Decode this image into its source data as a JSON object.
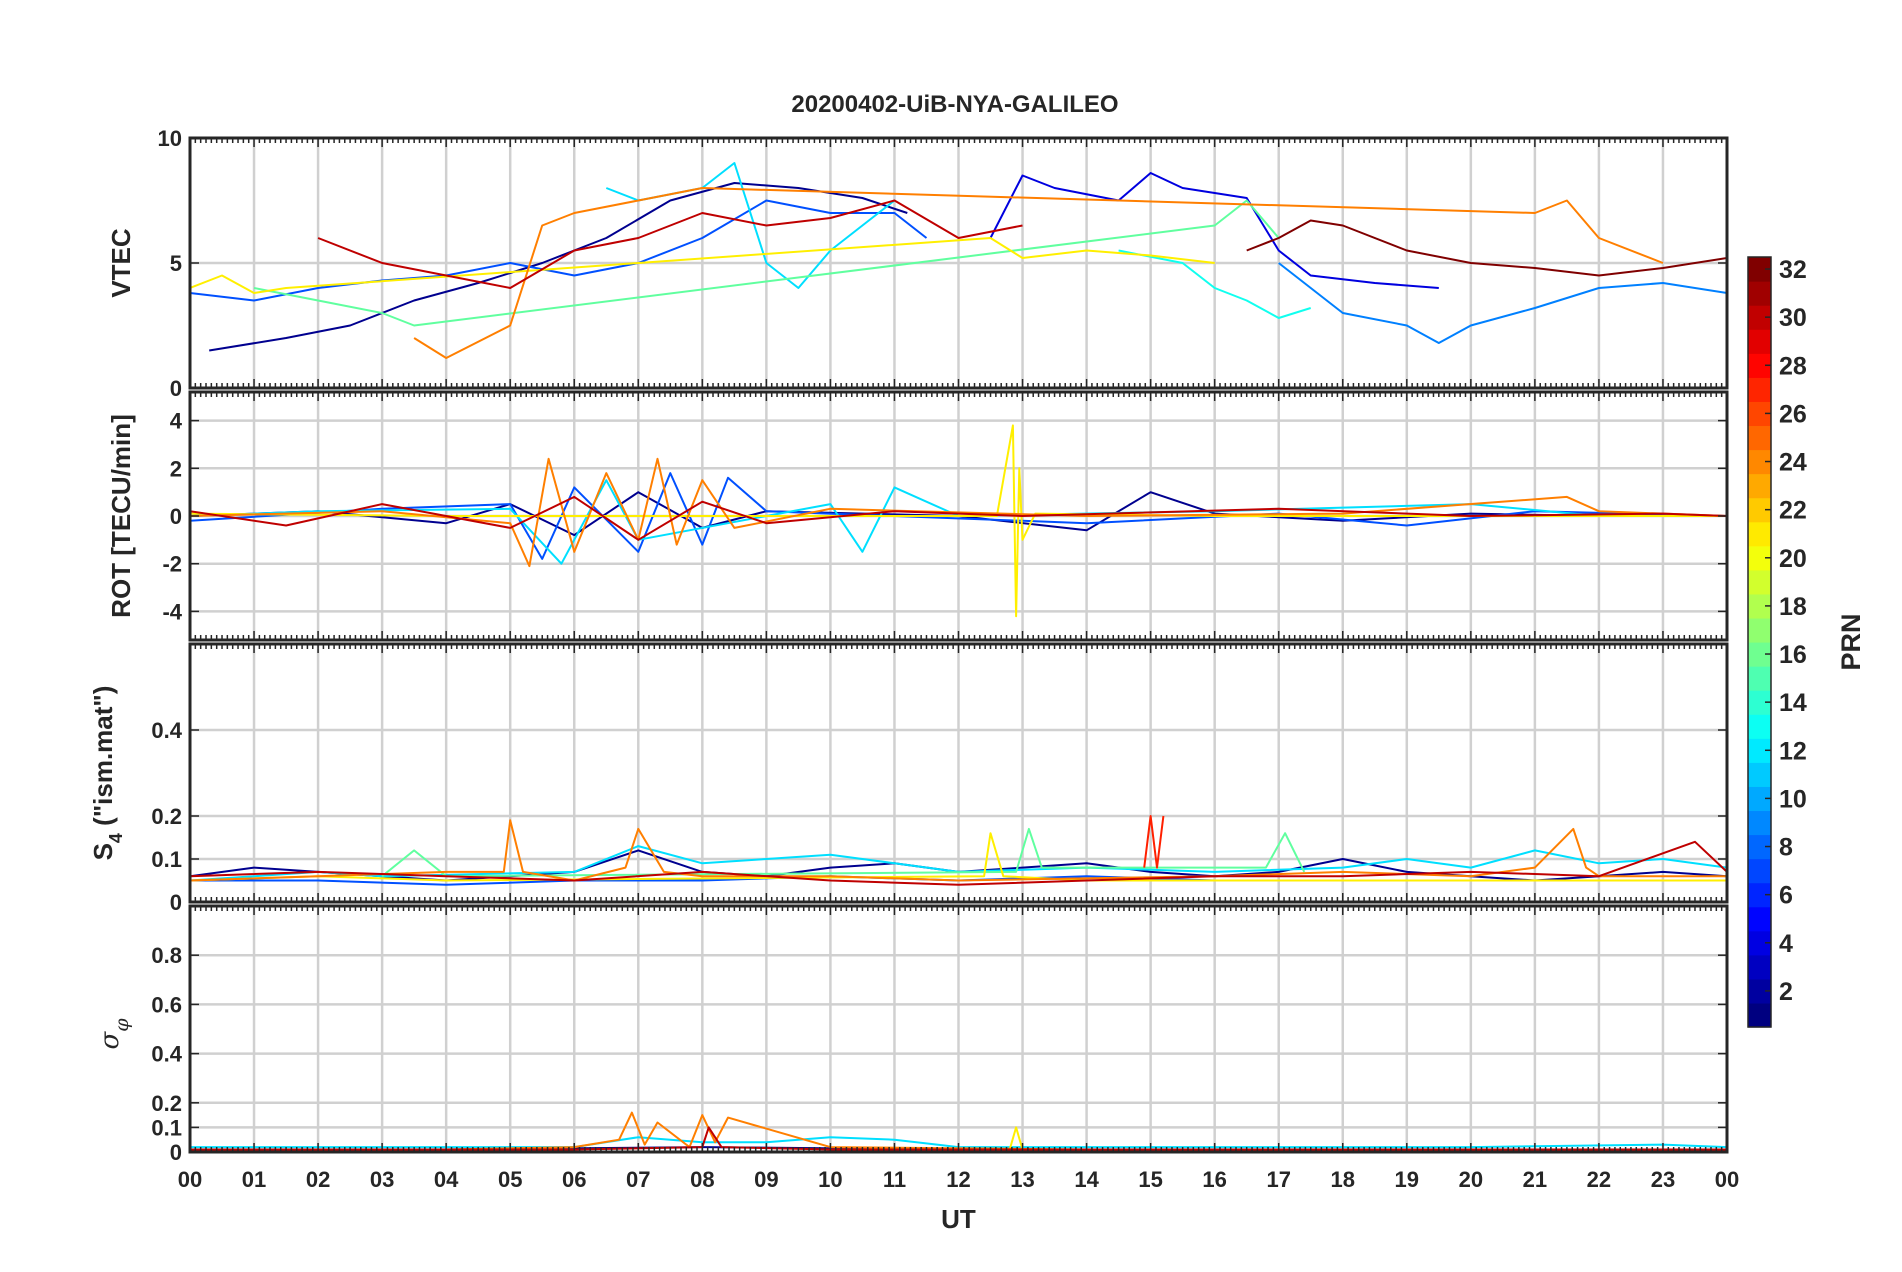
{
  "title": "20200402-UiB-NYA-GALILEO",
  "colorbar": {
    "label": "PRN",
    "min": 1,
    "max": 32,
    "ticks": [
      2,
      4,
      6,
      8,
      10,
      12,
      14,
      16,
      18,
      20,
      22,
      24,
      26,
      28,
      30,
      32
    ],
    "tick_labels": [
      "2",
      "4",
      "6",
      "8",
      "10",
      "12",
      "14",
      "16",
      "18",
      "20",
      "22",
      "24",
      "26",
      "28",
      "30",
      "32"
    ],
    "colormap": "jet"
  },
  "chart_data": [
    {
      "type": "line",
      "panel": "VTEC",
      "ylabel": "VTEC",
      "xlim": [
        0,
        24
      ],
      "ylim": [
        0,
        10
      ],
      "yticks": [
        0,
        5,
        10
      ],
      "ytick_labels": [
        "0",
        "5",
        "10"
      ],
      "grid": true,
      "series": [
        {
          "prn": 1,
          "color": "#00008f",
          "x": [
            0.3,
            1.5,
            2.5,
            3.5,
            4.5,
            5.5,
            6.5,
            7.5,
            8.5,
            9.5,
            10.5,
            11.2
          ],
          "values": [
            1.5,
            2.0,
            2.5,
            3.5,
            4.2,
            5.0,
            6.0,
            7.5,
            8.2,
            8.0,
            7.6,
            7.0
          ]
        },
        {
          "prn": 3,
          "color": "#0000df",
          "x": [
            12.5,
            13.0,
            13.5,
            14.5,
            15.0,
            15.5,
            16.5,
            17.0,
            17.5,
            18.5,
            19.5
          ],
          "values": [
            6.0,
            8.5,
            8.0,
            7.5,
            8.6,
            8.0,
            7.6,
            5.5,
            4.5,
            4.2,
            4.0
          ]
        },
        {
          "prn": 6,
          "color": "#0050ff",
          "x": [
            0.0,
            1.0,
            2.0,
            3.0,
            4.0,
            5.0,
            6.0,
            7.0,
            8.0,
            9.0,
            10.0,
            11.0,
            11.5
          ],
          "values": [
            3.8,
            3.5,
            4.0,
            4.3,
            4.5,
            5.0,
            4.5,
            5.0,
            6.0,
            7.5,
            7.0,
            7.0,
            6.0
          ]
        },
        {
          "prn": 8,
          "color": "#0080ff",
          "x": [
            17.0,
            18.0,
            19.0,
            19.5,
            20.0,
            21.0,
            22.0,
            23.0,
            24.0
          ],
          "values": [
            5.0,
            3.0,
            2.5,
            1.8,
            2.5,
            3.2,
            4.0,
            4.2,
            3.8
          ]
        },
        {
          "prn": 12,
          "color": "#00dfff",
          "x": [
            6.5,
            7.0,
            8.0,
            8.5,
            9.0,
            9.5,
            10.0,
            10.5,
            11.0
          ],
          "values": [
            8.0,
            7.5,
            8.0,
            9.0,
            5.0,
            4.0,
            5.5,
            6.5,
            7.5
          ]
        },
        {
          "prn": 13,
          "color": "#10ffef",
          "x": [
            14.5,
            15.5,
            16.0,
            16.5,
            17.0,
            17.5
          ],
          "values": [
            5.5,
            5.0,
            4.0,
            3.5,
            2.8,
            3.2
          ]
        },
        {
          "prn": 16,
          "color": "#60ff9f",
          "x": [
            1.0,
            2.0,
            3.0,
            3.5,
            16.0,
            16.5,
            17.0
          ],
          "values": [
            4.0,
            3.5,
            3.0,
            2.5,
            6.5,
            7.5,
            6.0
          ]
        },
        {
          "prn": 20,
          "color": "#ffef00",
          "x": [
            0.0,
            0.5,
            1.0,
            1.5,
            12.5,
            13.0,
            14.0,
            15.0,
            16.0
          ],
          "values": [
            4.0,
            4.5,
            3.8,
            4.0,
            6.0,
            5.2,
            5.5,
            5.3,
            5.0
          ]
        },
        {
          "prn": 24,
          "color": "#ff7f00",
          "x": [
            3.5,
            4.0,
            5.0,
            5.5,
            6.0,
            7.0,
            8.0,
            21.0,
            21.5,
            22.0,
            23.0
          ],
          "values": [
            2.0,
            1.2,
            2.5,
            6.5,
            7.0,
            7.5,
            8.0,
            7.0,
            7.5,
            6.0,
            5.0
          ]
        },
        {
          "prn": 30,
          "color": "#bf0000",
          "x": [
            2.0,
            3.0,
            4.0,
            5.0,
            6.0,
            7.0,
            8.0,
            9.0,
            10.0,
            11.0,
            12.0,
            13.0
          ],
          "values": [
            6.0,
            5.0,
            4.5,
            4.0,
            5.5,
            6.0,
            7.0,
            6.5,
            6.8,
            7.5,
            6.0,
            6.5
          ]
        },
        {
          "prn": 32,
          "color": "#800000",
          "x": [
            16.5,
            17.0,
            17.5,
            18.0,
            19.0,
            20.0,
            21.0,
            22.0,
            23.0,
            24.0
          ],
          "values": [
            5.5,
            6.0,
            6.7,
            6.5,
            5.5,
            5.0,
            4.8,
            4.5,
            4.8,
            5.2
          ]
        }
      ]
    },
    {
      "type": "line",
      "panel": "ROT",
      "ylabel": "ROT [TECU/min]",
      "xlim": [
        0,
        24
      ],
      "ylim": [
        -5.2,
        5.2
      ],
      "yticks": [
        -4,
        -2,
        0,
        2,
        4
      ],
      "ytick_labels": [
        "-4",
        "-2",
        "0",
        "2",
        "4"
      ],
      "grid": true,
      "series": [
        {
          "prn": 1,
          "color": "#00008f",
          "x": [
            0,
            2,
            4,
            5,
            6,
            7,
            8,
            9,
            12,
            14,
            15,
            16,
            18,
            20,
            22,
            24
          ],
          "values": [
            0,
            0.2,
            -0.3,
            0.5,
            -0.8,
            1.0,
            -0.5,
            0.2,
            0,
            -0.6,
            1.0,
            0.1,
            -0.2,
            0.1,
            0,
            0
          ]
        },
        {
          "prn": 6,
          "color": "#0050ff",
          "x": [
            0,
            3,
            5,
            5.5,
            6,
            7,
            7.5,
            8,
            8.4,
            9,
            11,
            14,
            17,
            19,
            21,
            24
          ],
          "values": [
            -0.2,
            0.3,
            0.5,
            -1.8,
            1.2,
            -1.5,
            1.8,
            -1.2,
            1.6,
            0.2,
            0,
            -0.3,
            0.1,
            -0.4,
            0.2,
            0
          ]
        },
        {
          "prn": 12,
          "color": "#00dfff",
          "x": [
            0,
            2,
            5,
            5.8,
            6.5,
            7,
            10,
            10.5,
            11,
            12,
            16,
            20,
            22,
            24
          ],
          "values": [
            0,
            0.2,
            0.3,
            -2.0,
            1.5,
            -1.0,
            0.5,
            -1.5,
            1.2,
            0,
            0.2,
            0.5,
            0,
            0
          ]
        },
        {
          "prn": 20,
          "color": "#ffef00",
          "x": [
            0,
            4,
            12.6,
            12.85,
            12.9,
            12.95,
            13.0,
            13.2,
            16,
            24
          ],
          "values": [
            0.1,
            0,
            0,
            3.8,
            -4.2,
            2.0,
            -1.0,
            0.1,
            0,
            0
          ]
        },
        {
          "prn": 24,
          "color": "#ff7f00",
          "x": [
            0,
            3,
            5,
            5.3,
            5.6,
            6,
            6.5,
            7,
            7.3,
            7.6,
            8,
            8.5,
            10,
            14,
            18,
            21.5,
            22,
            24
          ],
          "values": [
            0,
            0.2,
            -0.3,
            -2.1,
            2.4,
            -1.5,
            1.8,
            -1.0,
            2.4,
            -1.2,
            1.5,
            -0.5,
            0.3,
            0,
            0.1,
            0.8,
            0.2,
            0
          ]
        },
        {
          "prn": 30,
          "color": "#bf0000",
          "x": [
            0,
            1.5,
            3,
            5,
            6,
            7,
            8,
            9,
            11,
            13,
            17,
            20,
            23,
            24
          ],
          "values": [
            0.2,
            -0.4,
            0.5,
            -0.5,
            0.8,
            -1.0,
            0.6,
            -0.3,
            0.2,
            0,
            0.3,
            0,
            0.1,
            0
          ]
        }
      ]
    },
    {
      "type": "line",
      "panel": "S4",
      "ylabel": "S4 (\"ism.mat\")",
      "xlim": [
        0,
        24
      ],
      "ylim": [
        0,
        0.6
      ],
      "yticks": [
        0,
        0.1,
        0.2,
        0.4
      ],
      "ytick_labels": [
        "0",
        "0.1",
        "0.2",
        "0.4"
      ],
      "grid": true,
      "series": [
        {
          "prn": 1,
          "color": "#00008f",
          "x": [
            0,
            1,
            2,
            3,
            4,
            5,
            6,
            7,
            8,
            9,
            10,
            11,
            12,
            13,
            14,
            15,
            16,
            17,
            18,
            19,
            20,
            21,
            22,
            23,
            24
          ],
          "values": [
            0.06,
            0.08,
            0.07,
            0.06,
            0.05,
            0.06,
            0.07,
            0.12,
            0.07,
            0.06,
            0.08,
            0.09,
            0.07,
            0.08,
            0.09,
            0.07,
            0.06,
            0.07,
            0.1,
            0.07,
            0.06,
            0.05,
            0.06,
            0.07,
            0.06
          ]
        },
        {
          "prn": 6,
          "color": "#0050ff",
          "x": [
            0,
            2,
            4,
            6,
            8,
            10,
            12,
            14,
            16,
            18,
            20,
            22,
            24
          ],
          "values": [
            0.05,
            0.05,
            0.04,
            0.05,
            0.05,
            0.06,
            0.05,
            0.06,
            0.05,
            0.05,
            0.05,
            0.05,
            0.05
          ]
        },
        {
          "prn": 12,
          "color": "#00dfff",
          "x": [
            0,
            1,
            2,
            3,
            6,
            7,
            8,
            9,
            10,
            11,
            12,
            14,
            16,
            18,
            19,
            20,
            21,
            22,
            23,
            24
          ],
          "values": [
            0.05,
            0.06,
            0.07,
            0.06,
            0.07,
            0.13,
            0.09,
            0.1,
            0.11,
            0.09,
            0.07,
            0.08,
            0.07,
            0.08,
            0.1,
            0.08,
            0.12,
            0.09,
            0.1,
            0.08
          ]
        },
        {
          "prn": 16,
          "color": "#60ff9f",
          "x": [
            3,
            3.5,
            4,
            12.9,
            13.1,
            13.3,
            16.8,
            17.1,
            17.4
          ],
          "values": [
            0.06,
            0.12,
            0.06,
            0.07,
            0.17,
            0.08,
            0.08,
            0.16,
            0.07
          ]
        },
        {
          "prn": 20,
          "color": "#ffef00",
          "x": [
            0,
            2,
            4,
            12.4,
            12.5,
            12.7,
            14,
            18,
            22,
            24
          ],
          "values": [
            0.05,
            0.06,
            0.05,
            0.06,
            0.16,
            0.06,
            0.05,
            0.05,
            0.05,
            0.05
          ]
        },
        {
          "prn": 24,
          "color": "#ff7f00",
          "x": [
            0,
            2,
            4,
            4.9,
            5.0,
            5.2,
            6,
            6.8,
            7.0,
            7.4,
            8,
            10,
            12,
            16,
            18,
            20,
            21,
            21.6,
            21.8,
            22,
            24
          ],
          "values": [
            0.05,
            0.06,
            0.07,
            0.07,
            0.19,
            0.07,
            0.05,
            0.08,
            0.17,
            0.07,
            0.06,
            0.06,
            0.05,
            0.06,
            0.07,
            0.06,
            0.08,
            0.17,
            0.08,
            0.06,
            0.06
          ]
        },
        {
          "prn": 28,
          "color": "#ff2000",
          "x": [
            14.9,
            15.0,
            15.1,
            15.2
          ],
          "values": [
            0.08,
            0.2,
            0.08,
            0.2
          ]
        },
        {
          "prn": 30,
          "color": "#bf0000",
          "x": [
            0,
            2,
            4,
            6,
            8,
            10,
            12,
            14,
            16,
            18,
            20,
            22,
            23.5,
            24
          ],
          "values": [
            0.06,
            0.07,
            0.06,
            0.05,
            0.07,
            0.05,
            0.04,
            0.05,
            0.06,
            0.06,
            0.07,
            0.06,
            0.14,
            0.07
          ]
        }
      ]
    },
    {
      "type": "line",
      "panel": "sigma_phi",
      "ylabel": "σφ",
      "xlim": [
        0,
        24
      ],
      "ylim": [
        0,
        1
      ],
      "yticks": [
        0,
        0.1,
        0.2,
        0.4,
        0.6,
        0.8
      ],
      "ytick_labels": [
        "0",
        "0.1",
        "0.2",
        "0.4",
        "0.6",
        "0.8"
      ],
      "grid": true,
      "xticks": [
        0,
        1,
        2,
        3,
        4,
        5,
        6,
        7,
        8,
        9,
        10,
        11,
        12,
        13,
        14,
        15,
        16,
        17,
        18,
        19,
        20,
        21,
        22,
        23,
        24
      ],
      "xtick_labels": [
        "00",
        "01",
        "02",
        "03",
        "04",
        "05",
        "06",
        "07",
        "08",
        "09",
        "10",
        "11",
        "12",
        "13",
        "14",
        "15",
        "16",
        "17",
        "18",
        "19",
        "20",
        "21",
        "22",
        "23",
        "00"
      ],
      "xlabel": "UT",
      "series": [
        {
          "prn": 1,
          "color": "#00008f",
          "x": [
            0,
            4,
            8,
            12,
            16,
            20,
            24
          ],
          "values": [
            0.01,
            0.01,
            0.02,
            0.01,
            0.01,
            0.01,
            0.01
          ]
        },
        {
          "prn": 12,
          "color": "#00dfff",
          "x": [
            0,
            2,
            6,
            7,
            8,
            9,
            10,
            11,
            12,
            16,
            20,
            23,
            24
          ],
          "values": [
            0.02,
            0.02,
            0.02,
            0.06,
            0.04,
            0.04,
            0.06,
            0.05,
            0.02,
            0.02,
            0.02,
            0.03,
            0.02
          ]
        },
        {
          "prn": 20,
          "color": "#ffef00",
          "x": [
            12.8,
            12.9,
            13.0
          ],
          "values": [
            0.01,
            0.1,
            0.01
          ]
        },
        {
          "prn": 24,
          "color": "#ff7f00",
          "x": [
            0,
            4,
            6,
            6.7,
            6.9,
            7.1,
            7.3,
            7.8,
            8.0,
            8.2,
            8.4,
            10,
            14,
            20,
            24
          ],
          "values": [
            0.01,
            0.01,
            0.02,
            0.05,
            0.16,
            0.03,
            0.12,
            0.02,
            0.15,
            0.04,
            0.14,
            0.02,
            0.01,
            0.01,
            0.01
          ]
        },
        {
          "prn": 30,
          "color": "#bf0000",
          "x": [
            0,
            6,
            8,
            8.1,
            8.3,
            10,
            14,
            24
          ],
          "values": [
            0.01,
            0.01,
            0.02,
            0.1,
            0.02,
            0.01,
            0.01,
            0.01
          ]
        }
      ]
    }
  ]
}
